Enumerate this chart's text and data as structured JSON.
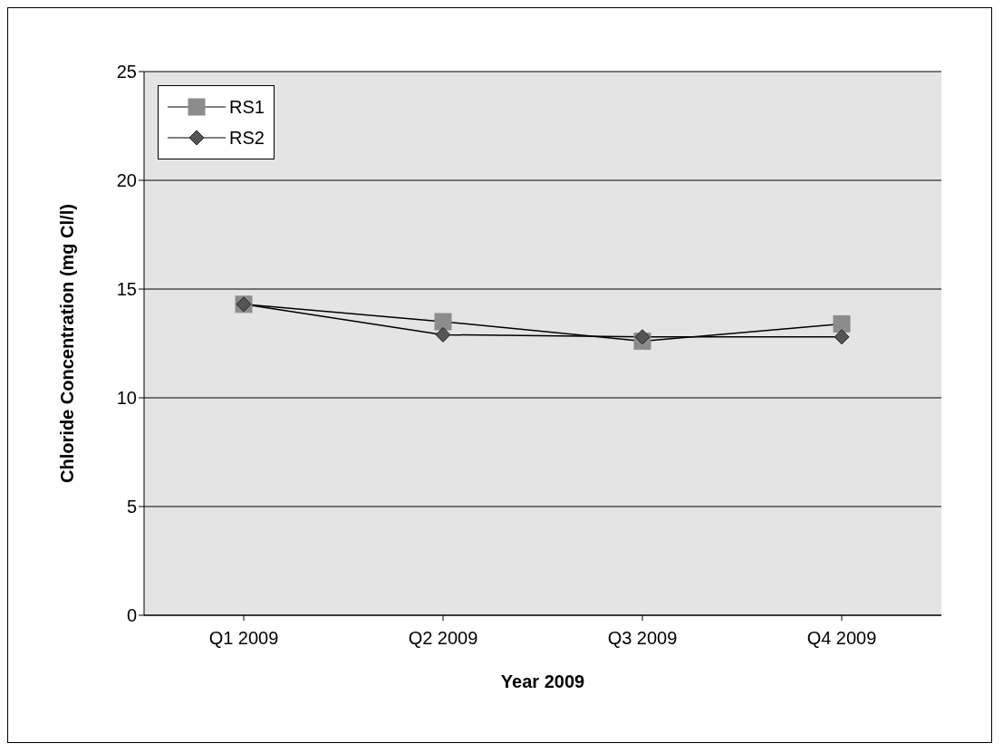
{
  "chart_data": {
    "type": "line",
    "xlabel": "Year 2009",
    "ylabel": "Chloride Concentration (mg Cl/l)",
    "categories": [
      "Q1 2009",
      "Q2 2009",
      "Q3 2009",
      "Q4 2009"
    ],
    "series": [
      {
        "name": "RS1",
        "color": "#8c8c8c",
        "marker": "square",
        "values": [
          14.3,
          13.5,
          12.6,
          13.4
        ]
      },
      {
        "name": "RS2",
        "color": "#555555",
        "marker": "diamond",
        "values": [
          14.3,
          12.9,
          12.8,
          12.8
        ]
      }
    ],
    "ylim": [
      0,
      25
    ],
    "yticks": [
      0,
      5,
      10,
      15,
      20,
      25
    ],
    "grid": "y",
    "legend": "top left",
    "line_style": "solid"
  }
}
